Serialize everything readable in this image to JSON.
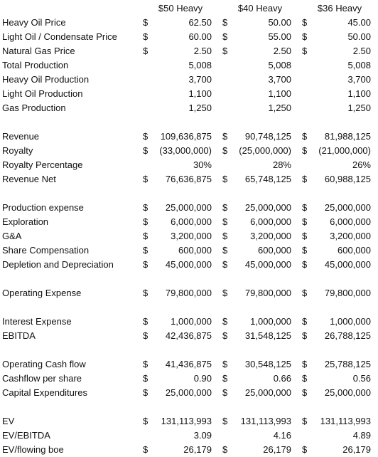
{
  "headers": [
    "$50 Heavy",
    "$40 Heavy",
    "$36 Heavy"
  ],
  "rows": [
    {
      "label": "Heavy Oil Price",
      "cells": [
        {
          "d": "$",
          "v": "62.50"
        },
        {
          "d": "$",
          "v": "50.00"
        },
        {
          "d": "$",
          "v": "45.00"
        }
      ]
    },
    {
      "label": "Light Oil / Condensate Price",
      "cells": [
        {
          "d": "$",
          "v": "60.00"
        },
        {
          "d": "$",
          "v": "55.00"
        },
        {
          "d": "$",
          "v": "50.00"
        }
      ]
    },
    {
      "label": "Natural Gas Price",
      "cells": [
        {
          "d": "$",
          "v": "2.50"
        },
        {
          "d": "$",
          "v": "2.50"
        },
        {
          "d": "$",
          "v": "2.50"
        }
      ]
    },
    {
      "label": "Total Production",
      "cells": [
        {
          "d": "",
          "v": "5,008"
        },
        {
          "d": "",
          "v": "5,008"
        },
        {
          "d": "",
          "v": "5,008"
        }
      ]
    },
    {
      "label": "Heavy Oil Production",
      "cells": [
        {
          "d": "",
          "v": "3,700"
        },
        {
          "d": "",
          "v": "3,700"
        },
        {
          "d": "",
          "v": "3,700"
        }
      ]
    },
    {
      "label": "Light Oil Production",
      "cells": [
        {
          "d": "",
          "v": "1,100"
        },
        {
          "d": "",
          "v": "1,100"
        },
        {
          "d": "",
          "v": "1,100"
        }
      ]
    },
    {
      "label": "Gas Production",
      "cells": [
        {
          "d": "",
          "v": "1,250"
        },
        {
          "d": "",
          "v": "1,250"
        },
        {
          "d": "",
          "v": "1,250"
        }
      ]
    },
    {
      "gap": true
    },
    {
      "label": "Revenue",
      "cells": [
        {
          "d": "$",
          "v": "109,636,875"
        },
        {
          "d": "$",
          "v": "90,748,125"
        },
        {
          "d": "$",
          "v": "81,988,125"
        }
      ]
    },
    {
      "label": "Royalty",
      "cells": [
        {
          "d": "$",
          "v": "(33,000,000)"
        },
        {
          "d": "$",
          "v": "(25,000,000)"
        },
        {
          "d": "$",
          "v": "(21,000,000)"
        }
      ]
    },
    {
      "label": "Royalty Percentage",
      "cells": [
        {
          "d": "",
          "v": "30%"
        },
        {
          "d": "",
          "v": "28%"
        },
        {
          "d": "",
          "v": "26%"
        }
      ]
    },
    {
      "label": "Revenue Net",
      "cells": [
        {
          "d": "$",
          "v": "76,636,875"
        },
        {
          "d": "$",
          "v": "65,748,125"
        },
        {
          "d": "$",
          "v": "60,988,125"
        }
      ]
    },
    {
      "gap": true
    },
    {
      "label": "Production expense",
      "cells": [
        {
          "d": "$",
          "v": "25,000,000"
        },
        {
          "d": "$",
          "v": "25,000,000"
        },
        {
          "d": "$",
          "v": "25,000,000"
        }
      ]
    },
    {
      "label": "Exploration",
      "cells": [
        {
          "d": "$",
          "v": "6,000,000"
        },
        {
          "d": "$",
          "v": "6,000,000"
        },
        {
          "d": "$",
          "v": "6,000,000"
        }
      ]
    },
    {
      "label": "G&A",
      "cells": [
        {
          "d": "$",
          "v": "3,200,000"
        },
        {
          "d": "$",
          "v": "3,200,000"
        },
        {
          "d": "$",
          "v": "3,200,000"
        }
      ]
    },
    {
      "label": "Share Compensation",
      "cells": [
        {
          "d": "$",
          "v": "600,000"
        },
        {
          "d": "$",
          "v": "600,000"
        },
        {
          "d": "$",
          "v": "600,000"
        }
      ]
    },
    {
      "label": "Depletion and Depreciation",
      "cells": [
        {
          "d": "$",
          "v": "45,000,000"
        },
        {
          "d": "$",
          "v": "45,000,000"
        },
        {
          "d": "$",
          "v": "45,000,000"
        }
      ]
    },
    {
      "gap": true
    },
    {
      "label": "Operating Expense",
      "cells": [
        {
          "d": "$",
          "v": "79,800,000"
        },
        {
          "d": "$",
          "v": "79,800,000"
        },
        {
          "d": "$",
          "v": "79,800,000"
        }
      ]
    },
    {
      "gap": true
    },
    {
      "label": "Interest Expense",
      "cells": [
        {
          "d": "$",
          "v": "1,000,000"
        },
        {
          "d": "$",
          "v": "1,000,000"
        },
        {
          "d": "$",
          "v": "1,000,000"
        }
      ]
    },
    {
      "label": "EBITDA",
      "cells": [
        {
          "d": "$",
          "v": "42,436,875"
        },
        {
          "d": "$",
          "v": "31,548,125"
        },
        {
          "d": "$",
          "v": "26,788,125"
        }
      ]
    },
    {
      "gap": true
    },
    {
      "label": "Operating Cash flow",
      "cells": [
        {
          "d": "$",
          "v": "41,436,875"
        },
        {
          "d": "$",
          "v": "30,548,125"
        },
        {
          "d": "$",
          "v": "25,788,125"
        }
      ]
    },
    {
      "label": "Cashflow per share",
      "cells": [
        {
          "d": "$",
          "v": "0.90"
        },
        {
          "d": "$",
          "v": "0.66"
        },
        {
          "d": "$",
          "v": "0.56"
        }
      ]
    },
    {
      "label": "Capital Expenditures",
      "cells": [
        {
          "d": "$",
          "v": "25,000,000"
        },
        {
          "d": "$",
          "v": "25,000,000"
        },
        {
          "d": "$",
          "v": "25,000,000"
        }
      ]
    },
    {
      "gap": true
    },
    {
      "label": "EV",
      "cells": [
        {
          "d": "$",
          "v": "131,113,993"
        },
        {
          "d": "$",
          "v": "131,113,993"
        },
        {
          "d": "$",
          "v": "131,113,993"
        }
      ]
    },
    {
      "label": "EV/EBITDA",
      "cells": [
        {
          "d": "",
          "v": "3.09"
        },
        {
          "d": "",
          "v": "4.16"
        },
        {
          "d": "",
          "v": "4.89"
        }
      ]
    },
    {
      "label": "EV/flowing boe",
      "cells": [
        {
          "d": "$",
          "v": "26,179"
        },
        {
          "d": "$",
          "v": "26,179"
        },
        {
          "d": "$",
          "v": "26,179"
        }
      ]
    }
  ]
}
